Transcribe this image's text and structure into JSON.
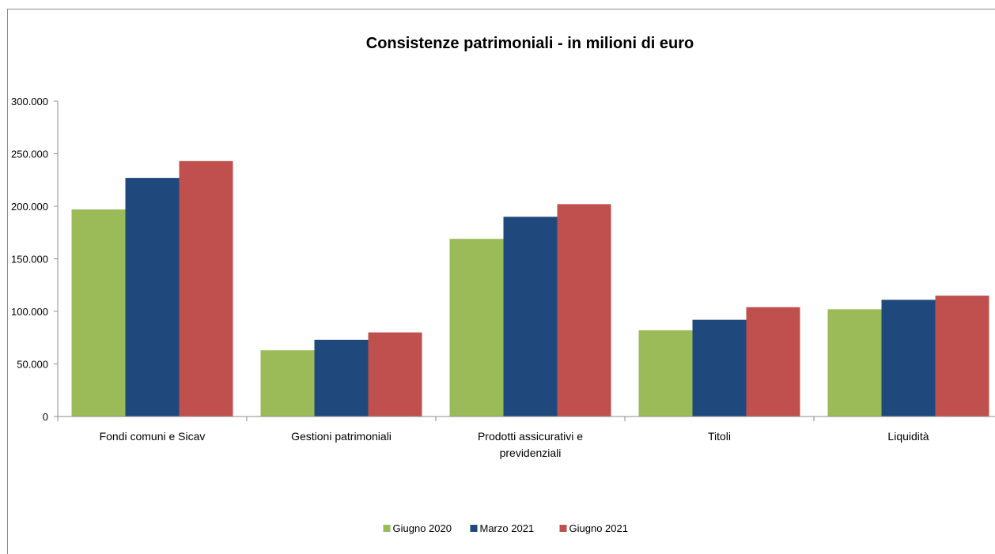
{
  "chart_data": {
    "type": "bar",
    "title": "Consistenze patrimoniali - in milioni di euro",
    "xlabel": "",
    "ylabel": "",
    "ylim": [
      0,
      300000
    ],
    "yticks": [
      0,
      50000,
      100000,
      150000,
      200000,
      250000,
      300000
    ],
    "ytick_labels": [
      "0",
      "50.000",
      "100.000",
      "150.000",
      "200.000",
      "250.000",
      "300.000"
    ],
    "grid": false,
    "legend_position": "bottom",
    "categories": [
      [
        "Fondi comuni e Sicav"
      ],
      [
        "Gestioni patrimoniali"
      ],
      [
        "Prodotti assicurativi e",
        "previdenziali"
      ],
      [
        "Titoli"
      ],
      [
        "Liquidità"
      ]
    ],
    "series": [
      {
        "name": "Giugno 2020",
        "color": "#9bbb59",
        "values": [
          197000,
          63000,
          169000,
          82000,
          102000
        ]
      },
      {
        "name": "Marzo 2021",
        "color": "#1f497d",
        "values": [
          227000,
          73000,
          190000,
          92000,
          111000
        ]
      },
      {
        "name": "Giugno 2021",
        "color": "#c0504d",
        "values": [
          243000,
          80000,
          202000,
          104000,
          115000
        ]
      }
    ]
  }
}
